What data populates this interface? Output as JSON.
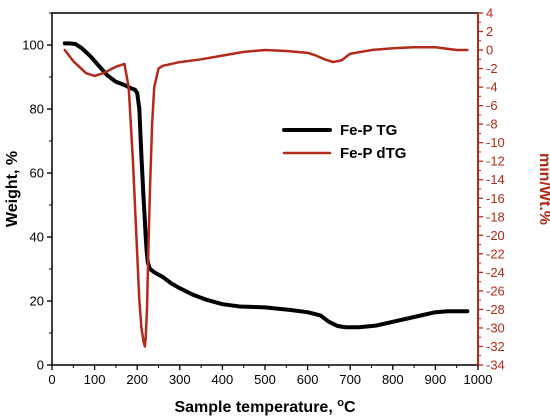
{
  "chart_data": {
    "type": "line",
    "xlabel_main": "Sample temperature, ",
    "xlabel_unit": "C",
    "ylabel_left": "Weight, %",
    "ylabel_right": "min/Wt.%",
    "xlim": [
      0,
      1000
    ],
    "ylim_left": [
      0,
      110
    ],
    "ylim_right": [
      -34,
      4
    ],
    "x_ticks": [
      0,
      100,
      200,
      300,
      400,
      500,
      600,
      700,
      800,
      900,
      1000
    ],
    "y_left_ticks": [
      0,
      20,
      40,
      60,
      80,
      100
    ],
    "y_right_ticks": [
      4,
      2,
      0,
      -2,
      -4,
      -6,
      -8,
      -10,
      -12,
      -14,
      -16,
      -18,
      -20,
      -22,
      -24,
      -26,
      -28,
      -30,
      -32,
      -34
    ],
    "legend_position": "center-right",
    "series": [
      {
        "name": "Fe-P TG",
        "axis": "left",
        "color": "#000000",
        "x": [
          30,
          40,
          55,
          70,
          90,
          110,
          130,
          150,
          170,
          185,
          195,
          200,
          205,
          210,
          215,
          218,
          220,
          222,
          225,
          230,
          240,
          260,
          280,
          300,
          330,
          360,
          400,
          440,
          500,
          560,
          600,
          630,
          650,
          670,
          690,
          720,
          760,
          800,
          850,
          900,
          930,
          975
        ],
        "y": [
          100.5,
          100.5,
          100.3,
          99,
          96.5,
          93.5,
          90.5,
          88.5,
          87.5,
          86.5,
          86,
          85,
          80,
          65,
          52,
          45,
          40,
          36,
          32,
          30,
          29,
          27.5,
          25.5,
          24,
          22,
          20.5,
          19,
          18.3,
          18,
          17.2,
          16.5,
          15.5,
          13.5,
          12.2,
          11.8,
          11.8,
          12.3,
          13.5,
          15,
          16.5,
          16.8,
          16.8
        ]
      },
      {
        "name": "Fe-P dTG",
        "axis": "right",
        "color": "#b22a1a",
        "x": [
          30,
          50,
          80,
          100,
          120,
          150,
          170,
          180,
          190,
          200,
          205,
          210,
          215,
          218,
          220,
          223,
          226,
          230,
          235,
          240,
          250,
          260,
          280,
          300,
          350,
          400,
          450,
          500,
          550,
          600,
          620,
          640,
          660,
          680,
          700,
          750,
          800,
          850,
          900,
          950,
          975
        ],
        "y": [
          0,
          -1.2,
          -2.5,
          -2.8,
          -2.5,
          -1.8,
          -1.5,
          -4,
          -12,
          -22,
          -27,
          -30,
          -31.5,
          -32,
          -31,
          -28,
          -22,
          -15,
          -8,
          -4,
          -2,
          -1.7,
          -1.5,
          -1.3,
          -1,
          -0.6,
          -0.2,
          0,
          -0.1,
          -0.3,
          -0.6,
          -1,
          -1.3,
          -1.1,
          -0.4,
          0,
          0.2,
          0.3,
          0.3,
          0,
          0
        ]
      }
    ]
  }
}
